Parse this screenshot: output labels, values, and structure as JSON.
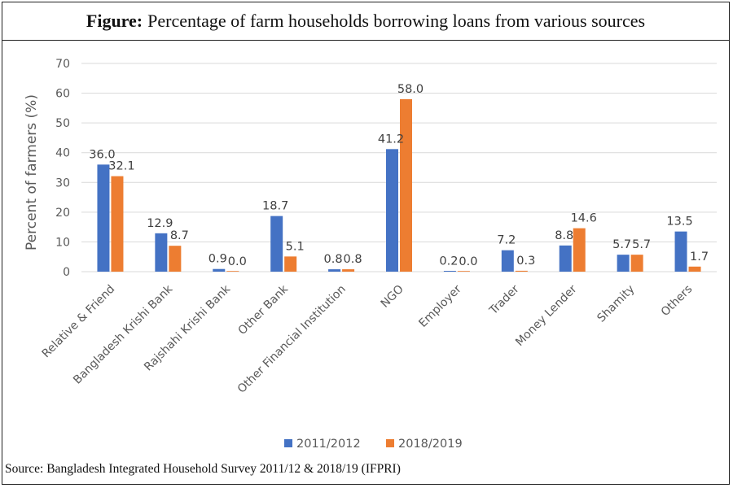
{
  "header": {
    "title_bold": "Figure:",
    "title_rest": "Percentage of farm households borrowing loans from various sources"
  },
  "source": "Source: Bangladesh Integrated Household Survey 2011/12 & 2018/19 (IFPRI)",
  "colors": {
    "series1": "#4472C4",
    "series2": "#ED7D31",
    "grid": "#d9d9d9",
    "axis_text": "#595959",
    "label_text": "#404040"
  },
  "chart_data": {
    "type": "bar",
    "title": "Percentage of farm households borrowing loans from various sources",
    "ylabel": "Percent of farmers (%)",
    "xlabel": "",
    "ylim": [
      0,
      70
    ],
    "yticks": [
      0,
      10,
      20,
      30,
      40,
      50,
      60,
      70
    ],
    "grid": true,
    "legend_position": "bottom",
    "categories": [
      "Relative & Friend",
      "Bangladesh Krishi Bank",
      "Rajshahi Krishi Bank",
      "Other Bank",
      "Other Financial Institution",
      "NGO",
      "Employer",
      "Trader",
      "Money Lender",
      "Shamity",
      "Others"
    ],
    "series": [
      {
        "name": "2011/2012",
        "values": [
          36.0,
          12.9,
          0.9,
          18.7,
          0.8,
          41.2,
          0.2,
          7.2,
          8.8,
          5.7,
          13.5
        ],
        "labels": [
          "36.0",
          "12.9",
          "0.9",
          "18.7",
          "0.8",
          "41.2",
          "0.2",
          "7.2",
          "8.8",
          "5.7",
          "13.5"
        ]
      },
      {
        "name": "2018/2019",
        "values": [
          32.1,
          8.7,
          0.0,
          5.1,
          0.8,
          58.0,
          0.0,
          0.3,
          14.6,
          5.7,
          1.7
        ],
        "labels": [
          "32.1",
          "8.7",
          "0.0",
          "5.1",
          "0.8",
          "58.0",
          "0.0",
          "0.3",
          "14.6",
          "5.7",
          "1.7"
        ]
      }
    ]
  }
}
